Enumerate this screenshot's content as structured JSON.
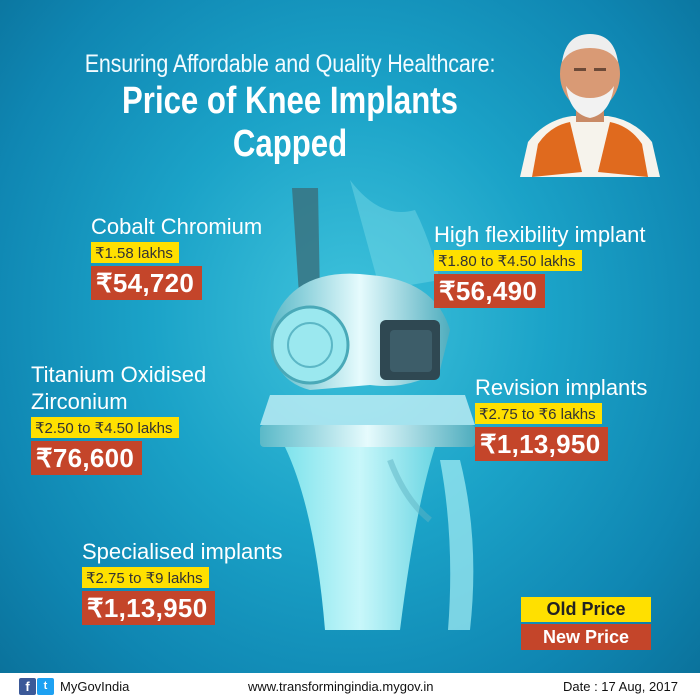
{
  "header": {
    "subtitle": "Ensuring Affordable and Quality Healthcare:",
    "title": "Price of Knee Implants Capped"
  },
  "implants": [
    {
      "name": "Cobalt Chromium",
      "old_price": "₹1.58 lakhs",
      "new_price": "₹54,720"
    },
    {
      "name": "High flexibility implant",
      "old_price": "₹1.80 to ₹4.50 lakhs",
      "new_price": "₹56,490"
    },
    {
      "name_line1": "Titanium Oxidised",
      "name_line2": "Zirconium",
      "old_price": "₹2.50 to ₹4.50 lakhs",
      "new_price": "₹76,600"
    },
    {
      "name": "Revision implants",
      "old_price": "₹2.75 to ₹6 lakhs",
      "new_price": "₹1,13,950"
    },
    {
      "name": "Specialised implants",
      "old_price": "₹2.75 to ₹9 lakhs",
      "new_price": "₹1,13,950"
    }
  ],
  "legend": {
    "old": "Old Price",
    "new": "New Price"
  },
  "footer": {
    "facebook_glyph": "f",
    "twitter_glyph": "t",
    "handle": "MyGovIndia",
    "website": "www.transformingindia.mygov.in",
    "date": "Date : 17 Aug, 2017"
  },
  "colors": {
    "background": "#1ba3c8",
    "old_price_bg": "#ffe000",
    "new_price_bg": "#c4452a"
  }
}
